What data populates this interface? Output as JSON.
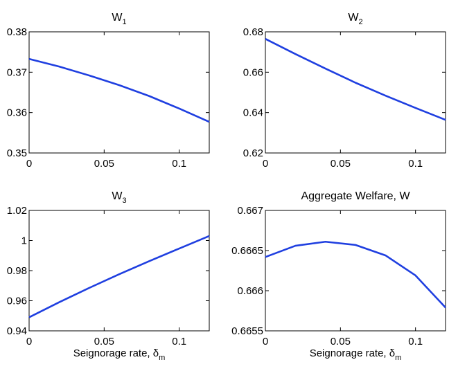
{
  "chart_data": [
    {
      "type": "line",
      "title": "W",
      "title_subscript": "1",
      "xlabel": "",
      "xlabel_subscript": "",
      "ylabel": "",
      "xlim": [
        0,
        0.12
      ],
      "ylim": [
        0.35,
        0.38
      ],
      "xticks": [
        0,
        0.05,
        0.1
      ],
      "xtick_labels": [
        "0",
        "0.05",
        "0.1"
      ],
      "yticks": [
        0.35,
        0.36,
        0.37,
        0.38
      ],
      "ytick_labels": [
        "0.35",
        "0.36",
        "0.37",
        "0.38"
      ],
      "x": [
        0,
        0.02,
        0.04,
        0.06,
        0.08,
        0.1,
        0.12
      ],
      "series": [
        {
          "name": "W1",
          "values": [
            0.3733,
            0.3714,
            0.3692,
            0.3668,
            0.3641,
            0.361,
            0.3577
          ]
        }
      ],
      "color": "#1f3fe0",
      "grid": false
    },
    {
      "type": "line",
      "title": "W",
      "title_subscript": "2",
      "xlabel": "",
      "xlabel_subscript": "",
      "ylabel": "",
      "xlim": [
        0,
        0.12
      ],
      "ylim": [
        0.62,
        0.68
      ],
      "xticks": [
        0,
        0.05,
        0.1
      ],
      "xtick_labels": [
        "0",
        "0.05",
        "0.1"
      ],
      "yticks": [
        0.62,
        0.64,
        0.66,
        0.68
      ],
      "ytick_labels": [
        "0.62",
        "0.64",
        "0.66",
        "0.68"
      ],
      "x": [
        0,
        0.02,
        0.04,
        0.06,
        0.08,
        0.1,
        0.12
      ],
      "series": [
        {
          "name": "W2",
          "values": [
            0.6765,
            0.669,
            0.6618,
            0.6548,
            0.6484,
            0.6423,
            0.6364
          ]
        }
      ],
      "color": "#1f3fe0",
      "grid": false
    },
    {
      "type": "line",
      "title": "W",
      "title_subscript": "3",
      "xlabel": "Seignorage rate, δ",
      "xlabel_subscript": "m",
      "ylabel": "",
      "xlim": [
        0,
        0.12
      ],
      "ylim": [
        0.94,
        1.02
      ],
      "xticks": [
        0,
        0.05,
        0.1
      ],
      "xtick_labels": [
        "0",
        "0.05",
        "0.1"
      ],
      "yticks": [
        0.94,
        0.96,
        0.98,
        1.0,
        1.02
      ],
      "ytick_labels": [
        "0.94",
        "0.96",
        "0.98",
        "1",
        "1.02"
      ],
      "x": [
        0,
        0.02,
        0.04,
        0.06,
        0.08,
        0.1,
        0.12
      ],
      "series": [
        {
          "name": "W3",
          "values": [
            0.949,
            0.959,
            0.9685,
            0.9776,
            0.9863,
            0.9947,
            1.003
          ]
        }
      ],
      "color": "#1f3fe0",
      "grid": false
    },
    {
      "type": "line",
      "title": "Aggregate Welfare, W",
      "title_subscript": "",
      "xlabel": "Seignorage rate, δ",
      "xlabel_subscript": "m",
      "ylabel": "",
      "xlim": [
        0,
        0.12
      ],
      "ylim": [
        0.6655,
        0.667
      ],
      "xticks": [
        0,
        0.05,
        0.1
      ],
      "xtick_labels": [
        "0",
        "0.05",
        "0.1"
      ],
      "yticks": [
        0.6655,
        0.666,
        0.6665,
        0.667
      ],
      "ytick_labels": [
        "0.6655",
        "0.666",
        "0.6665",
        "0.667"
      ],
      "x": [
        0,
        0.02,
        0.04,
        0.06,
        0.08,
        0.1,
        0.12
      ],
      "series": [
        {
          "name": "W",
          "values": [
            0.66642,
            0.66656,
            0.66661,
            0.66657,
            0.66644,
            0.66619,
            0.66579
          ]
        }
      ],
      "color": "#1f3fe0",
      "grid": false
    }
  ]
}
